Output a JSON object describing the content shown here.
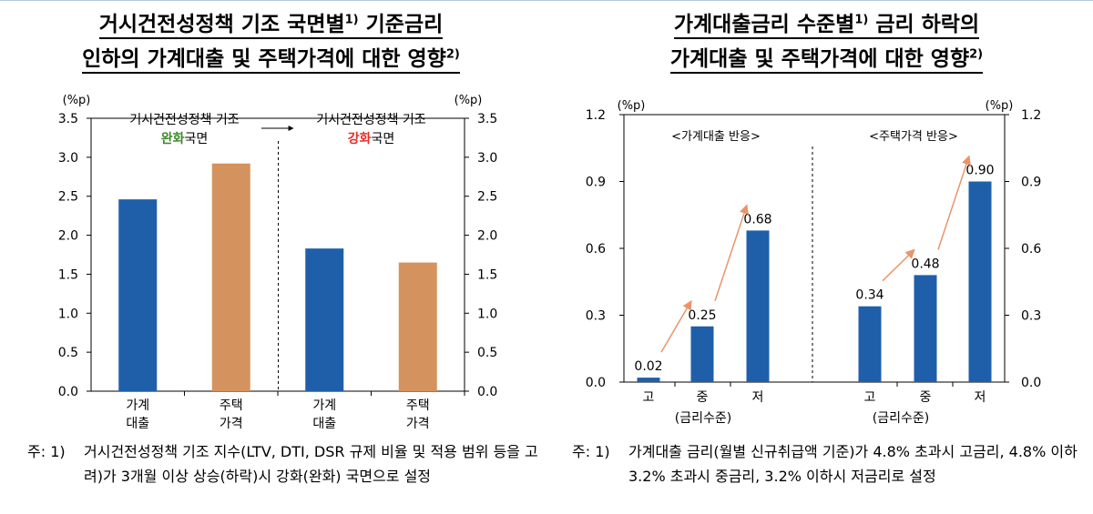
{
  "left_panel": {
    "title_line1": "거시건전성정책 기조 국면별",
    "title_sup1": "1)",
    "title_line1b": " 기준금리",
    "title_line2": "인하의 가계대출 및 주택가격에 대한 영향",
    "title_sup2": "2)",
    "note_prefix": "주: 1)",
    "note_text": "거시건전성정책 기조 지수(LTV, DTI, DSR 규제 비율 및 적용 범위 등을 고려)가 3개월 이상 상승(하락)시 강화(완화) 국면으로 설정"
  },
  "right_panel": {
    "title_line1": "가계대출금리 수준별",
    "title_sup1": "1)",
    "title_line1b": " 금리 하락의",
    "title_line2": "가계대출 및 주택가격에 대한 영향",
    "title_sup2": "2)",
    "note_prefix": "주: 1)",
    "note_text": "가계대출 금리(월별 신규취급액 기준)가 4.8% 초과시 고금리, 4.8% 이하 3.2% 초과시 중금리, 3.2% 이하시 저금리로 설정"
  },
  "colors": {
    "blue": "#1f5faa",
    "orange": "#d4935e",
    "green": "#3a8a2a",
    "red": "#e0302a",
    "arrow": "#e8956a"
  },
  "chart_data": [
    {
      "type": "bar",
      "unit_left": "(%p)",
      "unit_right": "(%p)",
      "ylim": [
        0,
        3.5
      ],
      "yticks": [
        "0.0",
        "0.5",
        "1.0",
        "1.5",
        "2.0",
        "2.5",
        "3.0",
        "3.5"
      ],
      "groups": [
        {
          "label_line1": "거시건전성정책 기조",
          "label_highlight": "완화",
          "label_suffix": "국면",
          "highlight_color": "green"
        },
        {
          "label_line1": "거시건전성정책 기조",
          "label_highlight": "강화",
          "label_suffix": "국면",
          "highlight_color": "red"
        }
      ],
      "arrow_label": "→",
      "categories": [
        {
          "line1": "가계",
          "line2": "대출",
          "value": 2.46,
          "color": "blue"
        },
        {
          "line1": "주택",
          "line2": "가격",
          "value": 2.92,
          "color": "orange"
        },
        {
          "line1": "가계",
          "line2": "대출",
          "value": 1.83,
          "color": "blue"
        },
        {
          "line1": "주택",
          "line2": "가격",
          "value": 1.65,
          "color": "orange"
        }
      ]
    },
    {
      "type": "bar",
      "unit_left": "(%p)",
      "unit_right": "(%p)",
      "ylim": [
        0,
        1.2
      ],
      "yticks": [
        "0.0",
        "0.3",
        "0.6",
        "0.9",
        "1.2"
      ],
      "groups": [
        {
          "label": "<가계대출 반응>",
          "axis_label": "(금리수준)"
        },
        {
          "label": "<주택가격 반응>",
          "axis_label": "(금리수준)"
        }
      ],
      "categories": [
        {
          "label": "고",
          "value": 0.02,
          "value_label": "0.02"
        },
        {
          "label": "중",
          "value": 0.25,
          "value_label": "0.25"
        },
        {
          "label": "저",
          "value": 0.68,
          "value_label": "0.68"
        },
        {
          "label": "고",
          "value": 0.34,
          "value_label": "0.34"
        },
        {
          "label": "중",
          "value": 0.48,
          "value_label": "0.48"
        },
        {
          "label": "저",
          "value": 0.9,
          "value_label": "0.90"
        }
      ]
    }
  ]
}
